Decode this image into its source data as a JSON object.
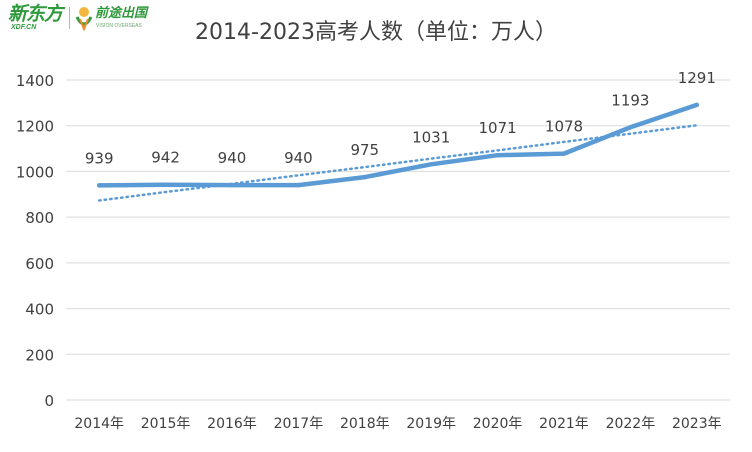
{
  "logos": {
    "xdf_name": "新东方",
    "xdf_domain": "XDF.CN",
    "overseas_name": "前途出国",
    "overseas_en": "VISION OVERSEAS"
  },
  "colors": {
    "series": "#5b9bd5",
    "grid": "#d9d9d9",
    "text": "#404040",
    "brand": "#2e9a3c"
  },
  "chart_data": {
    "type": "line",
    "title": "2014-2023高考人数（单位：万人）",
    "xlabel": "",
    "ylabel": "",
    "categories": [
      "2014年",
      "2015年",
      "2016年",
      "2017年",
      "2018年",
      "2019年",
      "2020年",
      "2021年",
      "2022年",
      "2023年"
    ],
    "series": [
      {
        "values": [
          939,
          942,
          940,
          940,
          975,
          1031,
          1071,
          1078,
          1193,
          1291
        ],
        "data_labels": true
      },
      {
        "values": [
          873,
          910,
          946,
          983,
          1019,
          1056,
          1092,
          1129,
          1165,
          1202
        ],
        "style": "dotted",
        "role": "linear trendline"
      }
    ],
    "ylim": [
      0,
      1400
    ],
    "yticks": [
      0,
      200,
      400,
      600,
      800,
      1000,
      1200,
      1400
    ],
    "grid": "horizontal",
    "legend": "none"
  }
}
